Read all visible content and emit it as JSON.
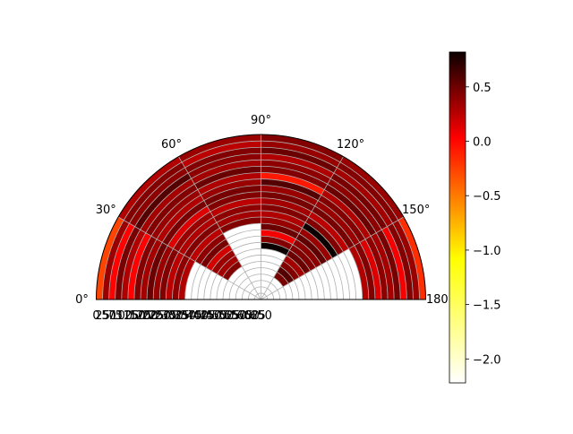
{
  "chart_data": {
    "type": "heatmap",
    "subtype": "polar-wedge",
    "colormap": "hot_r",
    "theta_range_deg": [
      0,
      180
    ],
    "r_range": [
      0,
      650
    ],
    "r_direction": "reversed",
    "grid": true,
    "theta_ticks": [
      {
        "deg": 0,
        "label": "0°"
      },
      {
        "deg": 30,
        "label": "30°"
      },
      {
        "deg": 60,
        "label": "60°"
      },
      {
        "deg": 90,
        "label": "90°"
      },
      {
        "deg": 120,
        "label": "120°"
      },
      {
        "deg": 150,
        "label": "150°"
      },
      {
        "deg": 180,
        "label": "180°"
      }
    ],
    "r_ticks": [
      {
        "value": 0,
        "label": "0"
      },
      {
        "value": 25,
        "label": "25"
      },
      {
        "value": 50,
        "label": "50"
      },
      {
        "value": 75,
        "label": "75"
      },
      {
        "value": 100,
        "label": "100"
      },
      {
        "value": 125,
        "label": "125"
      },
      {
        "value": 150,
        "label": "150"
      },
      {
        "value": 175,
        "label": "175"
      },
      {
        "value": 200,
        "label": "200"
      },
      {
        "value": 225,
        "label": "225"
      },
      {
        "value": 250,
        "label": "250"
      },
      {
        "value": 275,
        "label": "275"
      },
      {
        "value": 300,
        "label": "300"
      },
      {
        "value": 325,
        "label": "325"
      },
      {
        "value": 350,
        "label": "350"
      },
      {
        "value": 375,
        "label": "375"
      },
      {
        "value": 400,
        "label": "400"
      },
      {
        "value": 425,
        "label": "425"
      },
      {
        "value": 450,
        "label": "450"
      },
      {
        "value": 475,
        "label": "475"
      },
      {
        "value": 500,
        "label": "500"
      },
      {
        "value": 525,
        "label": "525"
      },
      {
        "value": 550,
        "label": "550"
      },
      {
        "value": 575,
        "label": "575"
      },
      {
        "value": 600,
        "label": "600"
      },
      {
        "value": 625,
        "label": "625"
      },
      {
        "value": 650,
        "label": "650"
      }
    ],
    "colorbar": {
      "min": -2.22,
      "max": 0.82,
      "ticks": [
        {
          "value": 0.5,
          "label": "0.5"
        },
        {
          "value": 0.0,
          "label": "0.0"
        },
        {
          "value": -0.5,
          "label": "−0.5"
        },
        {
          "value": -1.0,
          "label": "−1.0"
        },
        {
          "value": -1.5,
          "label": "−1.5"
        },
        {
          "value": -2.0,
          "label": "−2.0"
        }
      ]
    },
    "wedges": [
      {
        "theta": [
          30,
          60
        ],
        "r": [
          0,
          500
        ],
        "rings": [
          0.1,
          0.3,
          0.25,
          0.5,
          0.15,
          0.3,
          0.2,
          0.1,
          0.35,
          -0.1,
          0.2,
          0.1,
          0.3,
          0.05,
          0.25,
          0.35,
          -0.05,
          0.2,
          0.15,
          0.3
        ]
      },
      {
        "theta": [
          60,
          90
        ],
        "r": [
          0,
          350
        ],
        "rings": [
          0.2,
          0.05,
          0.3,
          0.25,
          0.15,
          0.4,
          0.1,
          0.2,
          0.35,
          0.3,
          0.05,
          0.25,
          0.15,
          0.3
        ]
      },
      {
        "theta": [
          90,
          120
        ],
        "r": [
          0,
          450
        ],
        "rings": [
          0.3,
          0.2,
          0.4,
          0.1,
          0.25,
          0.3,
          -0.4,
          0.5,
          0.2,
          0.35,
          0.15,
          0.3,
          0.1,
          0.2,
          0.4,
          -0.2,
          0.3,
          0.82
        ]
      },
      {
        "theta": [
          120,
          150
        ],
        "r": [
          0,
          550
        ],
        "rings": [
          0.2,
          0.3,
          0.15,
          0.35,
          0.25,
          0.4,
          0.1,
          0.3,
          0.2,
          0.35,
          0.05,
          0.3,
          0.82,
          0.2,
          0.45,
          0.25,
          0.3,
          0.4,
          0.15,
          0.3,
          0.5,
          0.35
        ]
      },
      {
        "theta": [
          0,
          30
        ],
        "r": [
          0,
          350
        ],
        "rings": [
          -0.6,
          0.2,
          -0.3,
          0.35,
          0.1,
          -0.25,
          0.3,
          0.15,
          0.4,
          0.2,
          0.3,
          0.05,
          0.25,
          0.1
        ]
      },
      {
        "theta": [
          150,
          180
        ],
        "r": [
          0,
          250
        ],
        "rings": [
          -0.5,
          0.2,
          0.3,
          -0.2,
          0.35,
          0.15,
          0.25,
          -0.1,
          0.3,
          0.1
        ]
      }
    ]
  }
}
